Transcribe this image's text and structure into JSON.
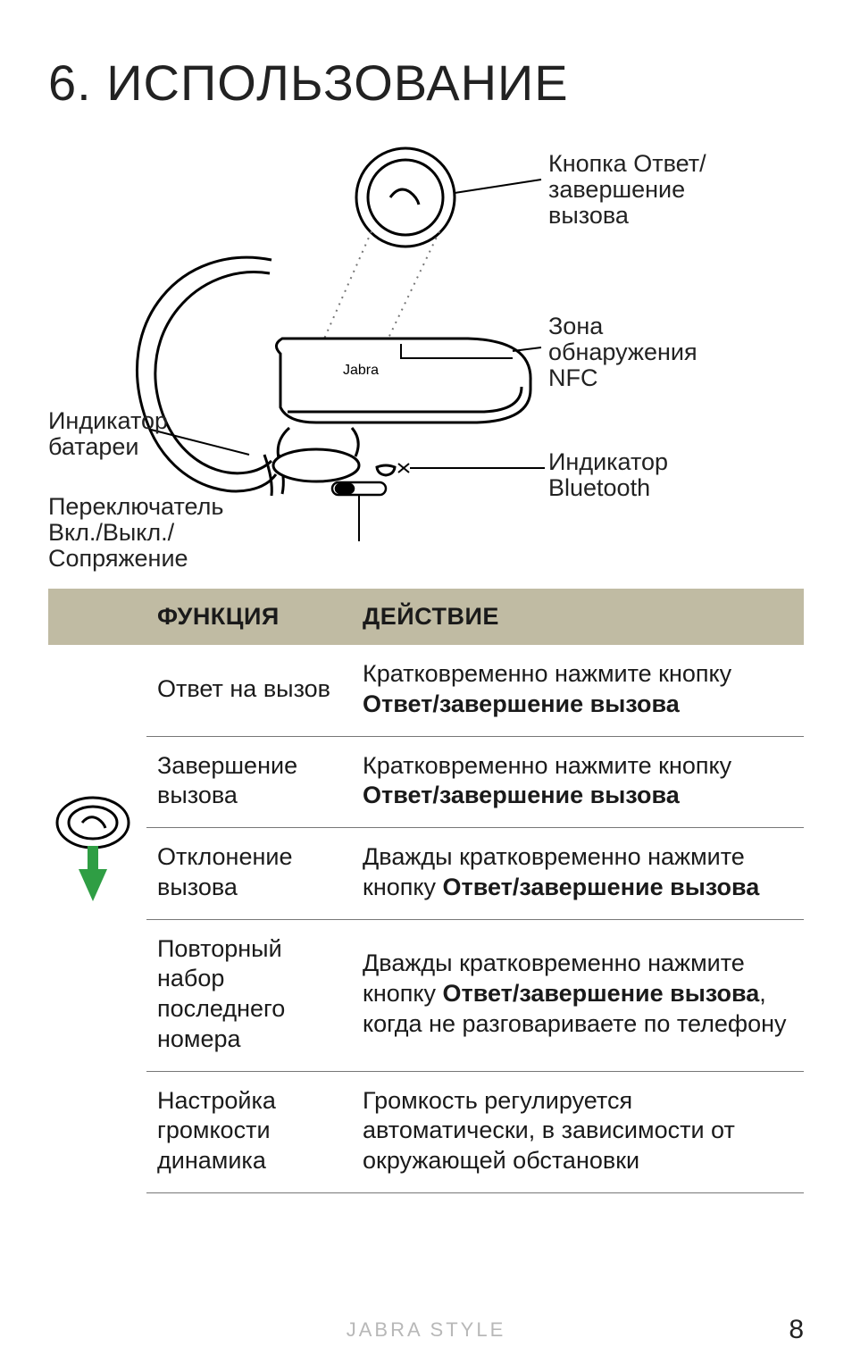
{
  "title": "6.  ИСПОЛЬЗОВАНИЕ",
  "diagram": {
    "labels": {
      "answer_end": "Кнопка Ответ/\nзавершение\nвызова",
      "nfc": "Зона\nобнаружения\nNFC",
      "bt": "Индикатор\nBluetooth",
      "battery": "Индикатор\nбатареи",
      "switch": "Переключатель\nВкл./Выкл./\nСопряжение"
    },
    "brand_on_device": "Jabra",
    "stroke": "#000000",
    "dotted_stroke": "#777777",
    "fill": "#ffffff",
    "arrow_color": "#2f9e44"
  },
  "table": {
    "headers": {
      "func": "ФУНКЦИЯ",
      "action": "ДЕЙСТВИЕ"
    },
    "rows": [
      {
        "func": "Ответ на вызов",
        "action_pre": "Кратковременно нажмите кнопку ",
        "action_bold": "Ответ/завершение вызова",
        "action_post": ""
      },
      {
        "func": "Завершение вызова",
        "action_pre": "Кратковременно нажмите кнопку ",
        "action_bold": "Ответ/завершение вызова",
        "action_post": ""
      },
      {
        "func": "Отклонение вызова",
        "action_pre": "Дважды кратковременно нажмите кнопку ",
        "action_bold": "Ответ/завершение вызова",
        "action_post": ""
      },
      {
        "func": "Повторный набор последнего номера",
        "action_pre": "Дважды кратковременно нажмите кнопку ",
        "action_bold": "Ответ/завершение вызова",
        "action_post": ", когда не разговариваете по телефону"
      },
      {
        "func": "Настройка громкости динамика",
        "action_pre": "Громкость регулируется автоматически, в зависимости от окружающей обстановки",
        "action_bold": "",
        "action_post": ""
      }
    ],
    "header_bg": "#c0bba3",
    "border_color": "#777777",
    "font_size": 27
  },
  "footer": {
    "brand": "JABRA STYLE",
    "page": "8",
    "color": "#b8b8b8"
  }
}
